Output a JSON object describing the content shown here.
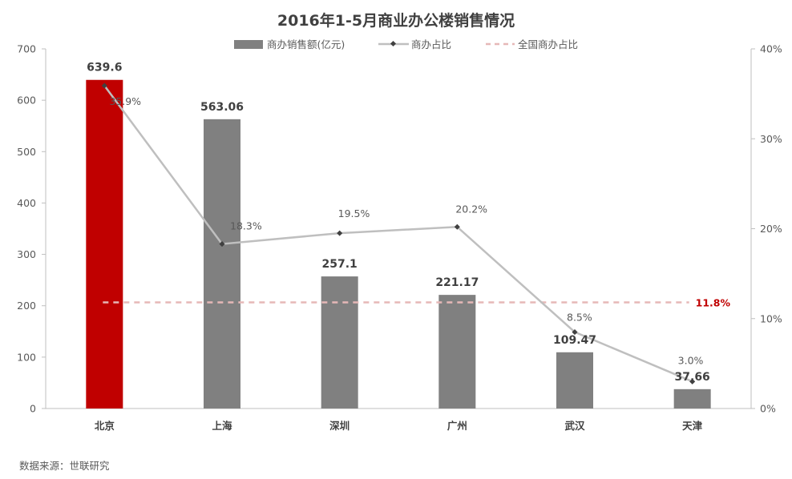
{
  "chart_data": {
    "type": "bar",
    "title": "2016年1-5月商业办公楼销售情况",
    "categories": [
      "北京",
      "上海",
      "深圳",
      "广州",
      "武汉",
      "天津"
    ],
    "bar_series": {
      "name": "商办销售额(亿元)",
      "values": [
        639.6,
        563.06,
        257.1,
        221.17,
        109.47,
        37.66
      ],
      "labels": [
        "639.6",
        "563.06",
        "257.1",
        "221.17",
        "109.47",
        "37.66"
      ],
      "color": "#808080",
      "highlight_index": 0,
      "highlight_color": "#c00000"
    },
    "line_series": {
      "name": "商办占比",
      "values": [
        35.9,
        18.3,
        19.5,
        20.2,
        8.5,
        3.0
      ],
      "labels": [
        "35.9%",
        "18.3%",
        "19.5%",
        "20.2%",
        "8.5%",
        "3.0%"
      ],
      "color": "#bfbfbf",
      "marker_color": "#404040"
    },
    "reference_line": {
      "name": "全国商办占比",
      "value": 11.8,
      "label": "11.8%",
      "color": "#e6b8b7",
      "label_color": "#c00000"
    },
    "y_left": {
      "ylim": [
        0,
        700
      ],
      "ticks": [
        "0",
        "100",
        "200",
        "300",
        "400",
        "500",
        "600",
        "700"
      ]
    },
    "y_right": {
      "ylim": [
        0,
        40
      ],
      "ticks": [
        "0%",
        "10%",
        "20%",
        "30%",
        "40%"
      ]
    },
    "legend_position": "top-center",
    "grid": false
  },
  "source_text": "数据来源：世联研究"
}
